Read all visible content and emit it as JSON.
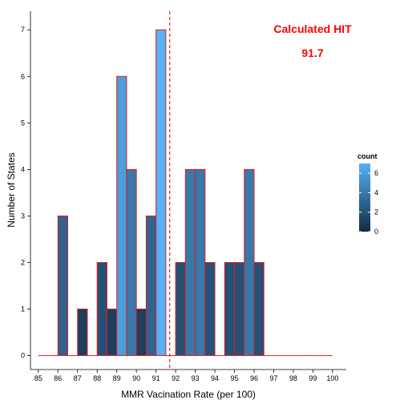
{
  "chart_data": {
    "type": "bar",
    "xlabel": "MMR Vacination Rate (per 100)",
    "ylabel": "Number of States",
    "x_ticks": [
      "85",
      "86",
      "87",
      "88",
      "89",
      "90",
      "91",
      "92",
      "93",
      "94",
      "95",
      "96",
      "97",
      "98",
      "99",
      "100"
    ],
    "y_ticks": [
      "0",
      "1",
      "2",
      "3",
      "4",
      "5",
      "6",
      "7"
    ],
    "xlim": [
      84.6,
      100.7
    ],
    "ylim": [
      -0.3,
      7.4
    ],
    "bin_width": 0.5,
    "bins": [
      {
        "x": 85.0,
        "count": 0
      },
      {
        "x": 85.5,
        "count": 0
      },
      {
        "x": 86.0,
        "count": 3
      },
      {
        "x": 86.5,
        "count": 0
      },
      {
        "x": 87.0,
        "count": 1
      },
      {
        "x": 87.5,
        "count": 0
      },
      {
        "x": 88.0,
        "count": 2
      },
      {
        "x": 88.5,
        "count": 1
      },
      {
        "x": 89.0,
        "count": 6
      },
      {
        "x": 89.5,
        "count": 4
      },
      {
        "x": 90.0,
        "count": 1
      },
      {
        "x": 90.5,
        "count": 3
      },
      {
        "x": 91.0,
        "count": 7
      },
      {
        "x": 91.5,
        "count": 0
      },
      {
        "x": 92.0,
        "count": 2
      },
      {
        "x": 92.5,
        "count": 4
      },
      {
        "x": 93.0,
        "count": 4
      },
      {
        "x": 93.5,
        "count": 2
      },
      {
        "x": 94.0,
        "count": 0
      },
      {
        "x": 94.5,
        "count": 2
      },
      {
        "x": 95.0,
        "count": 2
      },
      {
        "x": 95.5,
        "count": 4
      },
      {
        "x": 96.0,
        "count": 2
      },
      {
        "x": 96.5,
        "count": 0
      },
      {
        "x": 97.0,
        "count": 0
      },
      {
        "x": 97.5,
        "count": 0
      },
      {
        "x": 98.0,
        "count": 0
      },
      {
        "x": 98.5,
        "count": 0
      },
      {
        "x": 99.0,
        "count": 0
      },
      {
        "x": 99.5,
        "count": 0
      }
    ],
    "vline": 91.7,
    "annotation": {
      "title": "Calculated HIT",
      "value": "91.7"
    },
    "legend": {
      "title": "count",
      "labels": [
        "6",
        "4",
        "2",
        "0"
      ],
      "values": [
        6,
        4,
        2,
        0
      ],
      "placement": "right",
      "low_color": "#132b43",
      "high_color": "#56b1f7"
    },
    "bar_outline_color": "#e41a1c",
    "vline_color": "#cc0000",
    "annotation_color": "#ff0000",
    "grid": false
  }
}
